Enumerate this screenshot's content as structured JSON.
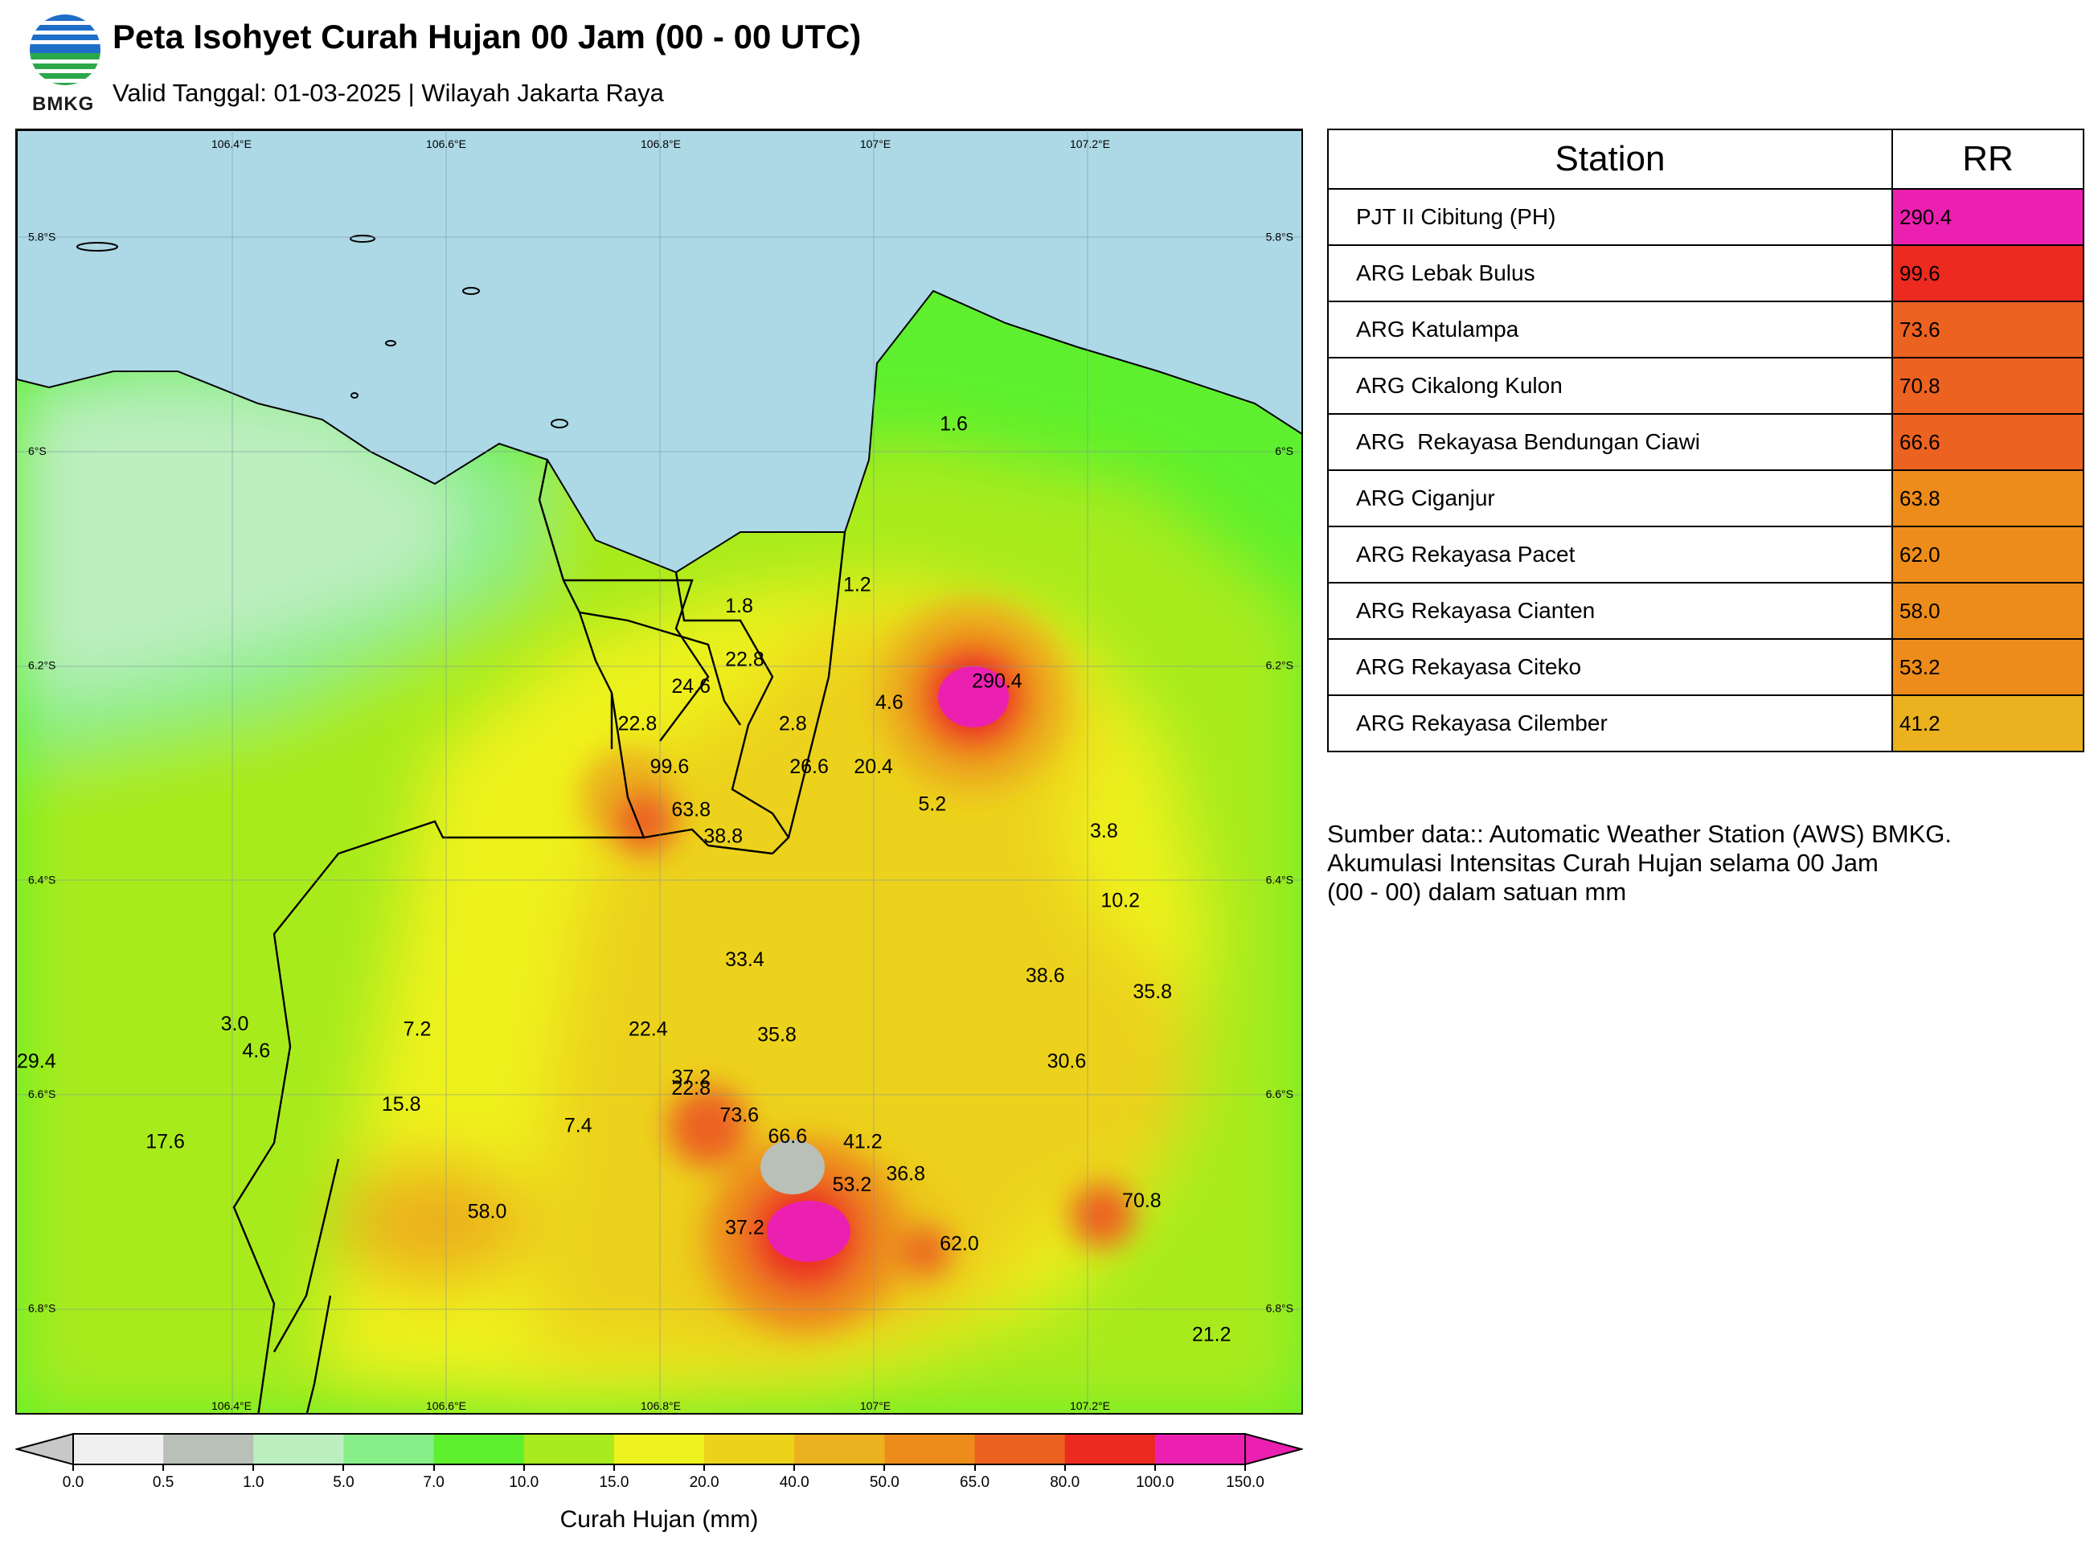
{
  "header": {
    "logo_text": "BMKG",
    "title": "Peta Isohyet Curah Hujan 00 Jam (00 - 00 UTC)",
    "subtitle": "Valid Tanggal: 01-03-2025 | Wilayah Jakarta Raya"
  },
  "map": {
    "lon_labels": [
      "106.4°E",
      "106.6°E",
      "106.8°E",
      "107°E",
      "107.2°E"
    ],
    "lat_labels": [
      "5.8°S",
      "6°S",
      "6.2°S",
      "6.4°S",
      "6.6°S",
      "6.8°S"
    ],
    "station_values": [
      {
        "label": "1.6",
        "lon": 107.06,
        "lat": -5.98
      },
      {
        "label": "1.2",
        "lon": 106.97,
        "lat": -6.13
      },
      {
        "label": "1.8",
        "lon": 106.86,
        "lat": -6.15
      },
      {
        "label": "22.8",
        "lon": 106.86,
        "lat": -6.2
      },
      {
        "label": "24.6",
        "lon": 106.81,
        "lat": -6.225
      },
      {
        "label": "290.4",
        "lon": 107.09,
        "lat": -6.22
      },
      {
        "label": "4.6",
        "lon": 107.0,
        "lat": -6.24
      },
      {
        "label": "22.8",
        "lon": 106.76,
        "lat": -6.26
      },
      {
        "label": "2.8",
        "lon": 106.91,
        "lat": -6.26
      },
      {
        "label": "99.6",
        "lon": 106.79,
        "lat": -6.3
      },
      {
        "label": "26.6",
        "lon": 106.92,
        "lat": -6.3
      },
      {
        "label": "20.4",
        "lon": 106.98,
        "lat": -6.3
      },
      {
        "label": "63.8",
        "lon": 106.81,
        "lat": -6.34
      },
      {
        "label": "5.2",
        "lon": 107.04,
        "lat": -6.335
      },
      {
        "label": "38.8",
        "lon": 106.84,
        "lat": -6.365
      },
      {
        "label": "3.8",
        "lon": 107.2,
        "lat": -6.36
      },
      {
        "label": "10.2",
        "lon": 107.21,
        "lat": -6.425
      },
      {
        "label": "33.4",
        "lon": 106.86,
        "lat": -6.48
      },
      {
        "label": "38.6",
        "lon": 107.14,
        "lat": -6.495
      },
      {
        "label": "35.8",
        "lon": 107.24,
        "lat": -6.51
      },
      {
        "label": "3.0",
        "lon": 106.39,
        "lat": -6.54
      },
      {
        "label": "7.2",
        "lon": 106.56,
        "lat": -6.545
      },
      {
        "label": "22.4",
        "lon": 106.77,
        "lat": -6.545
      },
      {
        "label": "35.8",
        "lon": 106.89,
        "lat": -6.55
      },
      {
        "label": "4.6",
        "lon": 106.41,
        "lat": -6.565
      },
      {
        "label": "29.4",
        "lon": 106.2,
        "lat": -6.575
      },
      {
        "label": "30.6",
        "lon": 107.16,
        "lat": -6.575
      },
      {
        "label": "37.2",
        "lon": 106.81,
        "lat": -6.59
      },
      {
        "label": "22.8",
        "lon": 106.81,
        "lat": -6.6
      },
      {
        "label": "15.8",
        "lon": 106.54,
        "lat": -6.615
      },
      {
        "label": "73.6",
        "lon": 106.855,
        "lat": -6.625
      },
      {
        "label": "7.4",
        "lon": 106.71,
        "lat": -6.635
      },
      {
        "label": "66.6",
        "lon": 106.9,
        "lat": -6.645
      },
      {
        "label": "41.2",
        "lon": 106.97,
        "lat": -6.65
      },
      {
        "label": "17.6",
        "lon": 106.32,
        "lat": -6.65
      },
      {
        "label": "36.8",
        "lon": 107.01,
        "lat": -6.68
      },
      {
        "label": "53.2",
        "lon": 106.96,
        "lat": -6.69
      },
      {
        "label": "58.0",
        "lon": 106.62,
        "lat": -6.715
      },
      {
        "label": "70.8",
        "lon": 107.23,
        "lat": -6.705
      },
      {
        "label": "37.2",
        "lon": 106.86,
        "lat": -6.73
      },
      {
        "label": "62.0",
        "lon": 107.06,
        "lat": -6.745
      },
      {
        "label": "21.2",
        "lon": 107.295,
        "lat": -6.83
      }
    ]
  },
  "colorbar": {
    "ticks": [
      "0.0",
      "0.5",
      "1.0",
      "5.0",
      "7.0",
      "10.0",
      "15.0",
      "20.0",
      "40.0",
      "50.0",
      "65.0",
      "80.0",
      "100.0",
      "150.0"
    ],
    "colors": [
      "#f0f0f0",
      "#b8c0b8",
      "#bdeec0",
      "#88ee88",
      "#5ef02e",
      "#a8eb1e",
      "#eef21e",
      "#ecd21a",
      "#ebb11e",
      "#ed8c1a",
      "#ec6220",
      "#ec2a20",
      "#ec20b0"
    ],
    "under_color": "#c8c8c8",
    "over_color": "#ec20b0",
    "label": "Curah Hujan (mm)"
  },
  "table": {
    "col_station": "Station",
    "col_rr": "RR",
    "rows": [
      {
        "station": "PJT II Cibitung (PH)",
        "rr": "290.4",
        "color": "#ec20b0"
      },
      {
        "station": "ARG Lebak Bulus",
        "rr": "99.6",
        "color": "#ec2a20"
      },
      {
        "station": "ARG Katulampa",
        "rr": "73.6",
        "color": "#ec6220"
      },
      {
        "station": "ARG Cikalong Kulon",
        "rr": "70.8",
        "color": "#ec6220"
      },
      {
        "station": "ARG  Rekayasa Bendungan Ciawi",
        "rr": "66.6",
        "color": "#ec6220"
      },
      {
        "station": "ARG Ciganjur",
        "rr": "63.8",
        "color": "#ed8c1a"
      },
      {
        "station": "ARG Rekayasa Pacet",
        "rr": "62.0",
        "color": "#ed8c1a"
      },
      {
        "station": "ARG Rekayasa Cianten",
        "rr": "58.0",
        "color": "#ed8c1a"
      },
      {
        "station": "ARG Rekayasa Citeko",
        "rr": "53.2",
        "color": "#ed8c1a"
      },
      {
        "station": "ARG Rekayasa Cilember",
        "rr": "41.2",
        "color": "#ebb11e"
      }
    ]
  },
  "source": {
    "line1": "Sumber data:: Automatic Weather Station (AWS) BMKG.",
    "line2": "Akumulasi Intensitas Curah Hujan selama 00 Jam",
    "line3": "(00 - 00) dalam satuan mm"
  }
}
